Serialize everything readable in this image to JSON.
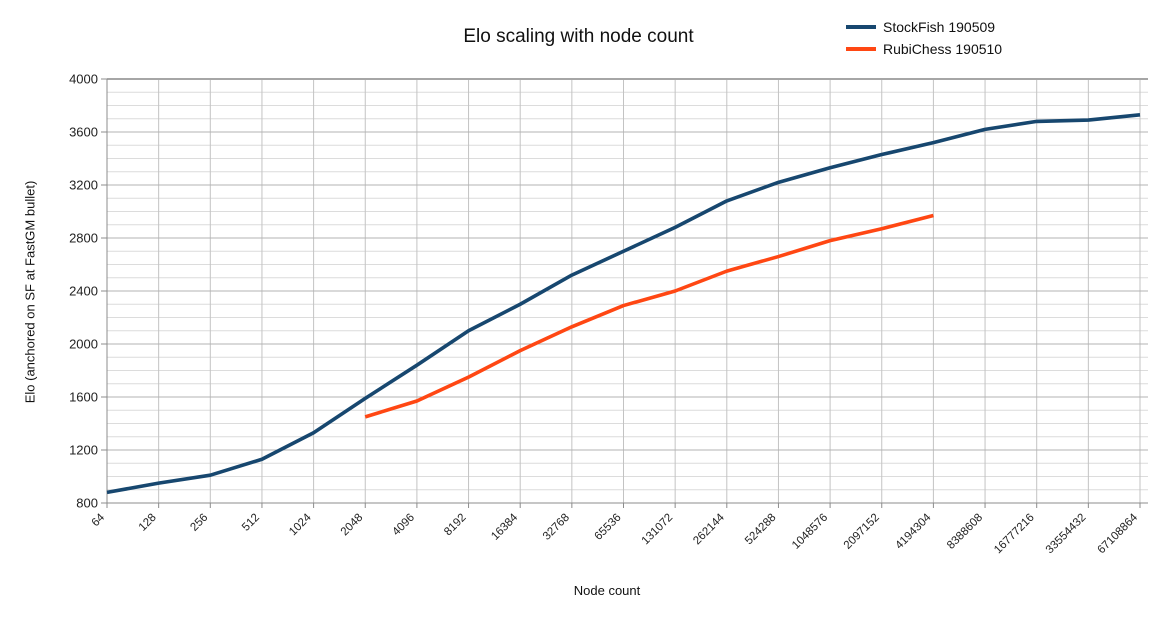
{
  "chart_data": {
    "type": "line",
    "title": "Elo scaling with node count",
    "xlabel": "Node count",
    "ylabel": "Elo (anchored on SF at FastGM bullet)",
    "categories": [
      "64",
      "128",
      "256",
      "512",
      "1024",
      "2048",
      "4096",
      "8192",
      "16384",
      "32768",
      "65536",
      "131072",
      "262144",
      "524288",
      "1048576",
      "2097152",
      "4194304",
      "8388608",
      "16777216",
      "33554432",
      "67108864"
    ],
    "ylim": [
      800,
      4000
    ],
    "y_major_step": 400,
    "y_minor_step": 100,
    "y_ticks": [
      "800",
      "1200",
      "1600",
      "2000",
      "2400",
      "2800",
      "3200",
      "3600",
      "4000"
    ],
    "grid": true,
    "legend_position": "top-right",
    "series": [
      {
        "name": "StockFish 190509",
        "color": "#17476F",
        "values": [
          880,
          950,
          1010,
          1130,
          1330,
          1590,
          1840,
          2100,
          2300,
          2520,
          2700,
          2880,
          3080,
          3220,
          3330,
          3430,
          3520,
          3620,
          3680,
          3690,
          3730
        ]
      },
      {
        "name": "RubiChess 190510",
        "color": "#FF4713",
        "values": [
          null,
          null,
          null,
          null,
          null,
          1450,
          1570,
          1750,
          1950,
          2130,
          2290,
          2400,
          2550,
          2660,
          2780,
          2870,
          2970
        ]
      }
    ]
  }
}
